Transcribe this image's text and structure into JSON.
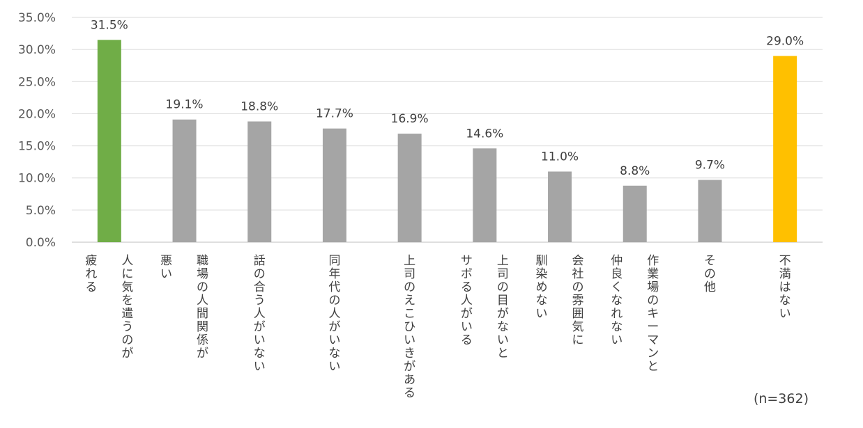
{
  "chart_data": {
    "type": "bar",
    "ylim": [
      0,
      35
    ],
    "y_ticks": [
      "0.0%",
      "5.0%",
      "10.0%",
      "15.0%",
      "20.0%",
      "25.0%",
      "30.0%",
      "35.0%"
    ],
    "grid": true,
    "categories": [
      [
        "人に気を遣うのが",
        "疲れる"
      ],
      [
        "職場の人間関係が",
        "悪い"
      ],
      [
        "話の合う人がいない"
      ],
      [
        "同年代の人がいない"
      ],
      [
        "上司のえこひいきがある"
      ],
      [
        "上司の目がないと",
        "サボる人がいる"
      ],
      [
        "会社の雰囲気に",
        "馴染めない"
      ],
      [
        "作業場のキーマンと",
        "仲良くなれない"
      ],
      [
        "その他"
      ],
      [
        "不満はない"
      ]
    ],
    "values": [
      31.5,
      19.1,
      18.8,
      17.7,
      16.9,
      14.6,
      11.0,
      8.8,
      9.7,
      29.0
    ],
    "value_labels": [
      "31.5%",
      "19.1%",
      "18.8%",
      "17.7%",
      "16.9%",
      "14.6%",
      "11.0%",
      "8.8%",
      "9.7%",
      "29.0%"
    ],
    "colors": [
      "#70ad47",
      "#a5a5a5",
      "#a5a5a5",
      "#a5a5a5",
      "#a5a5a5",
      "#a5a5a5",
      "#a5a5a5",
      "#a5a5a5",
      "#a5a5a5",
      "#ffc000"
    ]
  },
  "note": "(n=362)"
}
